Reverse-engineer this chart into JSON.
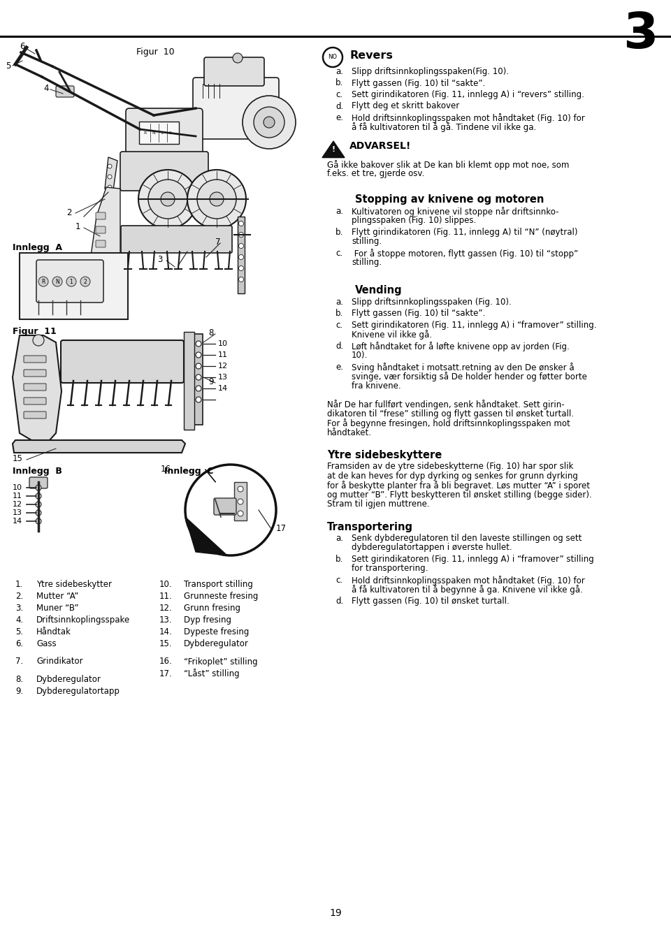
{
  "page_num": "19",
  "chapter_num": "3",
  "bg_color": "#ffffff",
  "text_color": "#000000",
  "figur10_label": "Figur  10",
  "figur11_label": "Figur  11",
  "innlegg_a_label": "Innlegg  A",
  "innlegg_b_label": "Innlegg  B",
  "innlegg_c_label": "Innlegg  C",
  "section_revers_title": "Revers",
  "section_revers_items": [
    [
      "a.",
      "Slipp driftsinnkoplingsspaken(Fig. 10)."
    ],
    [
      "b.",
      "Flytt gassen (Fig. 10) til “sakte”."
    ],
    [
      "c.",
      "Sett girindikatoren (Fig. 11, innlegg A) i “revers” stilling."
    ],
    [
      "d.",
      "Flytt deg et skritt bakover"
    ],
    [
      "e.",
      "Hold driftsinnkoplingsspaken mot håndtaket (Fig. 10) for\nå få kultivatoren til å gå. Tindene vil ikke ga."
    ]
  ],
  "advarsel_title": "ADVARSEL!",
  "advarsel_text": "Gå ikke bakover slik at De kan bli klemt opp mot noe, som\nf.eks. et tre, gjerde osv.",
  "section_stopping_title": "Stopping av knivene og motoren",
  "section_stopping_items": [
    [
      "a.",
      "Kultivatoren og knivene vil stoppe når driftsinnko-\nplingsspaken (Fig. 10) slippes."
    ],
    [
      "b.",
      "Flytt girindikatoren (Fig. 11, innlegg A) til “N” (nøytral)\nstilling."
    ],
    [
      "c.",
      " For å stoppe motoren, flytt gassen (Fig. 10) til “stopp”\nstilling."
    ]
  ],
  "section_vending_title": "Vending",
  "section_vending_items": [
    [
      "a.",
      "Slipp driftsinnkoplingsspaken (Fig. 10)."
    ],
    [
      "b.",
      "Flytt gassen (Fig. 10) til “sakte”."
    ],
    [
      "c.",
      "Sett girindikatoren (Fig. 11, innlegg A) i “framover” stilling.\nKnivene vil ikke gå."
    ],
    [
      "d.",
      "Løft håndtaket for å løfte knivene opp av jorden (Fig.\n10)."
    ],
    [
      "e.",
      "Sving håndtaket i motsatt.retning av den De ønsker å\nsvinge, vær forsiktig så De holder hender og føtter borte\nfra knivene."
    ]
  ],
  "vending_paragraph": "Når De har fullført vendingen, senk håndtaket. Sett girin-\ndikatoren til “frese” stilling og flytt gassen til ønsket turtall.\nFor å begynne fresingen, hold driftsinnkoplingsspaken mot\nhåndtaket.",
  "section_ytre_title": "Ytre sidebeskyttere",
  "section_ytre_text": "Framsiden av de ytre sidebeskytterne (Fig. 10) har spor slik\nat de kan heves for dyp dyrking og senkes for grunn dyrking\nfor å beskytte planter fra å bli begravet. Løs mutter “A” i sporet\nog mutter “B”. Flytt beskytteren til ønsket stilling (begge sider).\nStram til igjen muttrene.",
  "section_transport_title": "Transportering",
  "section_transport_items": [
    [
      "a.",
      "Senk dybderegulatoren til den laveste stillingen og sett\ndybderegulatortappen i øverste hullet."
    ],
    [
      "b.",
      "Sett girindikatoren (Fig. 11, innlegg A) i “framover” stilling\nfor transportering."
    ],
    [
      "c.",
      "Hold driftsinnkoplingsspaken mot håndtaket (Fig. 10) for\nå få kultivatoren til å begynne å ga. Knivene vil ikke gå."
    ],
    [
      "d.",
      "Flytt gassen (Fig. 10) til ønsket turtall."
    ]
  ],
  "legend_col1": [
    [
      "1.",
      "Ytre sidebeskytter"
    ],
    [
      "2.",
      "Mutter “A”"
    ],
    [
      "3.",
      "Muner “B”"
    ],
    [
      "4.",
      "Driftsinnkoplingsspake"
    ],
    [
      "5.",
      "Håndtak"
    ],
    [
      "6.",
      "Gass"
    ],
    [
      "",
      ""
    ],
    [
      "7.",
      "Grindikator"
    ],
    [
      "",
      ""
    ],
    [
      "8.",
      "Dybderegulator"
    ],
    [
      "9.",
      "Dybderegulatortapp"
    ]
  ],
  "legend_col2": [
    [
      "10.",
      "Transport stilling"
    ],
    [
      "11.",
      "Grunneste fresing"
    ],
    [
      "12.",
      "Grunn fresing"
    ],
    [
      "13.",
      "Dyp fresing"
    ],
    [
      "14.",
      "Dypeste fresing"
    ],
    [
      "15.",
      "Dybderegulator"
    ],
    [
      "",
      ""
    ],
    [
      "16.",
      "“Frikoplet” stilling"
    ],
    [
      "17.",
      "“Låst” stilling"
    ]
  ]
}
